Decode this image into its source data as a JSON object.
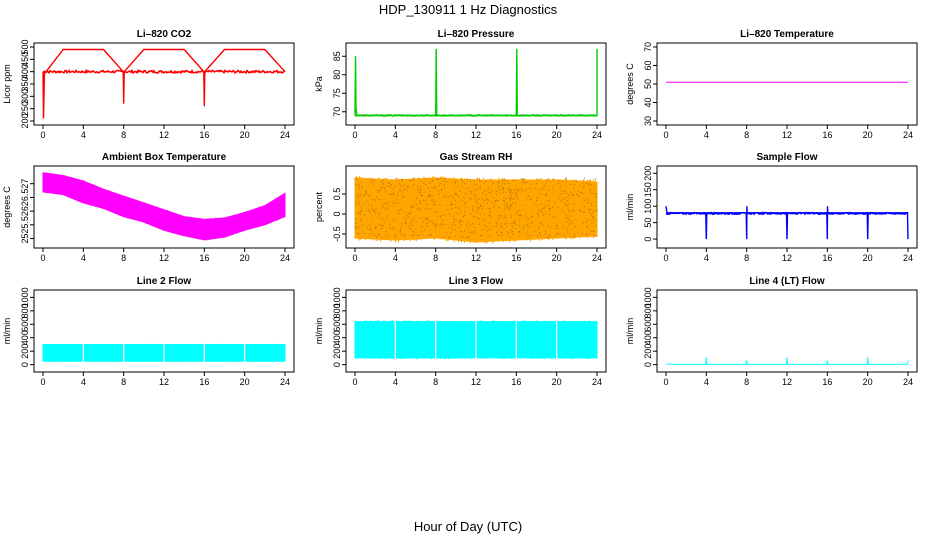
{
  "figure": {
    "title": "HDP_130911  1 Hz Diagnostics",
    "xlabel": "Hour of Day (UTC)"
  },
  "chart_data": [
    {
      "type": "line",
      "title": "Li–820 CO2",
      "ylabel": "Licor ppm",
      "color": "#ff0000",
      "xlim": [
        0,
        24
      ],
      "ylim": [
        200,
        500
      ],
      "xticks": [
        0,
        4,
        8,
        12,
        16,
        20,
        24
      ],
      "yticks": [
        200,
        250,
        300,
        350,
        400,
        450,
        500
      ],
      "baseline": 400,
      "noise": 10,
      "x": [
        0,
        0.05,
        0.15,
        0.3,
        2,
        4,
        6,
        7.95,
        8,
        8.05,
        10,
        12,
        14,
        15.95,
        16,
        16.05,
        18,
        20,
        22,
        24
      ],
      "y": [
        400,
        210,
        400,
        400,
        490,
        490,
        490,
        400,
        270,
        400,
        490,
        490,
        490,
        400,
        260,
        400,
        490,
        490,
        490,
        400
      ]
    },
    {
      "type": "line",
      "title": "Li–820 Pressure",
      "ylabel": "kPa",
      "color": "#00cc00",
      "xlim": [
        0,
        24
      ],
      "ylim": [
        67.5,
        87.5
      ],
      "xticks": [
        0,
        4,
        8,
        12,
        16,
        20,
        24
      ],
      "yticks": [
        70,
        75,
        80,
        85
      ],
      "baseline": 69,
      "noise": 0.3,
      "x": [
        0,
        0.05,
        0.1,
        0.2,
        8,
        8.05,
        8.1,
        16,
        16.05,
        16.1,
        24,
        24
      ],
      "y": [
        69,
        85,
        71,
        69,
        69,
        87,
        69,
        69,
        87,
        69,
        69,
        87
      ]
    },
    {
      "type": "line",
      "title": "Li–820 Temperature",
      "ylabel": "degrees C",
      "color": "#ff00ff",
      "xlim": [
        0,
        24
      ],
      "ylim": [
        30,
        70
      ],
      "xticks": [
        0,
        4,
        8,
        12,
        16,
        20,
        24
      ],
      "yticks": [
        30,
        40,
        50,
        60,
        70
      ],
      "baseline": 51,
      "noise": 0,
      "x": [
        0,
        24
      ],
      "y": [
        51,
        51
      ]
    },
    {
      "type": "area",
      "title": "Ambient Box Temperature",
      "ylabel": "degrees C",
      "color": "#ff00ff",
      "xlim": [
        0,
        24
      ],
      "ylim": [
        24.8,
        27.5
      ],
      "xticks": [
        0,
        4,
        8,
        12,
        16,
        20,
        24
      ],
      "yticks": [
        25.0,
        25.5,
        26.0,
        26.5,
        27.0
      ],
      "x": [
        0,
        2,
        4,
        6,
        8,
        10,
        12,
        14,
        16,
        18,
        20,
        22,
        24
      ],
      "y_lower": [
        26.7,
        26.6,
        26.3,
        26.1,
        25.8,
        25.6,
        25.3,
        25.1,
        24.95,
        25.05,
        25.3,
        25.5,
        25.8
      ],
      "y_upper": [
        27.4,
        27.3,
        27.1,
        26.8,
        26.55,
        26.3,
        26.05,
        25.8,
        25.7,
        25.75,
        25.95,
        26.2,
        26.65
      ]
    },
    {
      "type": "area",
      "title": "Gas Stream RH",
      "ylabel": "percent",
      "color": "#ffa500",
      "xlim": [
        0,
        24
      ],
      "ylim": [
        -0.75,
        1.1
      ],
      "xticks": [
        0,
        4,
        8,
        12,
        16,
        20,
        24
      ],
      "yticks": [
        -0.5,
        0.0,
        0.5
      ],
      "x": [
        0,
        4,
        8,
        12,
        16,
        20,
        24
      ],
      "y_lower": [
        -0.6,
        -0.65,
        -0.6,
        -0.7,
        -0.65,
        -0.6,
        -0.55
      ],
      "y_upper": [
        0.9,
        0.85,
        0.9,
        0.85,
        0.85,
        0.85,
        0.8
      ]
    },
    {
      "type": "line",
      "title": "Sample Flow",
      "ylabel": "ml/min",
      "color": "#0000ff",
      "xlim": [
        0,
        24
      ],
      "ylim": [
        -15,
        210
      ],
      "xticks": [
        0,
        4,
        8,
        12,
        16,
        20,
        24
      ],
      "yticks": [
        0,
        50,
        100,
        150,
        200
      ],
      "baseline": 78,
      "noise": 5,
      "x": [
        0,
        0.1,
        3.95,
        4,
        4.05,
        7.95,
        8,
        8.02,
        8.05,
        11.95,
        12,
        12.05,
        15.95,
        16,
        16.02,
        16.05,
        19.95,
        20,
        20.05,
        23.95,
        24
      ],
      "y": [
        100,
        80,
        80,
        0,
        80,
        80,
        0,
        100,
        80,
        80,
        0,
        80,
        80,
        0,
        100,
        80,
        80,
        0,
        80,
        80,
        0
      ]
    },
    {
      "type": "area",
      "title": "Line 2 Flow",
      "ylabel": "ml/min",
      "color": "#00ffff",
      "xlim": [
        0,
        24
      ],
      "ylim": [
        -50,
        1050
      ],
      "xticks": [
        0,
        4,
        8,
        12,
        16,
        20,
        24
      ],
      "yticks": [
        0,
        200,
        400,
        600,
        800,
        1000
      ],
      "x": [
        0,
        24
      ],
      "y_lower": [
        50,
        50
      ],
      "y_upper": [
        300,
        300
      ]
    },
    {
      "type": "area",
      "title": "Line 3 Flow",
      "ylabel": "ml/min",
      "color": "#00ffff",
      "xlim": [
        0,
        24
      ],
      "ylim": [
        -50,
        1050
      ],
      "xticks": [
        0,
        4,
        8,
        12,
        16,
        20,
        24
      ],
      "yticks": [
        0,
        200,
        400,
        600,
        800,
        1000
      ],
      "x": [
        0,
        24
      ],
      "y_lower": [
        100,
        100
      ],
      "y_upper": [
        640,
        640
      ]
    },
    {
      "type": "line",
      "title": "Line 4 (LT) Flow",
      "ylabel": "ml/min",
      "color": "#00ffff",
      "xlim": [
        0,
        24
      ],
      "ylim": [
        -50,
        1050
      ],
      "xticks": [
        0,
        4,
        8,
        12,
        16,
        20,
        24
      ],
      "yticks": [
        0,
        200,
        400,
        600,
        800,
        1000
      ],
      "baseline": 5,
      "noise": 0,
      "x": [
        0,
        3.95,
        4,
        4.05,
        7.95,
        8,
        8.05,
        11.95,
        12,
        12.05,
        15.95,
        16,
        16.05,
        19.95,
        20,
        20.05,
        23.95,
        24
      ],
      "y": [
        5,
        5,
        110,
        5,
        5,
        60,
        5,
        5,
        110,
        5,
        5,
        60,
        5,
        5,
        110,
        5,
        5,
        60
      ]
    }
  ]
}
